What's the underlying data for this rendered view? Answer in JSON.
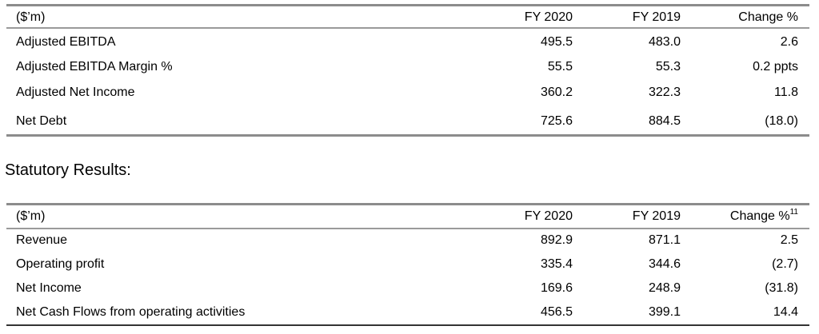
{
  "table1": {
    "header": [
      "($’m)",
      "FY 2020",
      "FY 2019",
      "Change %"
    ],
    "rows": [
      [
        "Adjusted EBITDA",
        "495.5",
        "483.0",
        "2.6"
      ],
      [
        "Adjusted EBITDA Margin %",
        "55.5",
        "55.3",
        "0.2 ppts"
      ],
      [
        "Adjusted Net Income",
        "360.2",
        "322.3",
        "11.8"
      ],
      [
        "Net Debt",
        "725.6",
        "884.5",
        "(18.0)"
      ]
    ]
  },
  "section_title": "Statutory Results:",
  "table2": {
    "header": [
      "($’m)",
      "FY 2020",
      "FY 2019",
      "Change %"
    ],
    "header_note": "11",
    "rows": [
      [
        "Revenue",
        "892.9",
        "871.1",
        "2.5"
      ],
      [
        "Operating profit",
        "335.4",
        "344.6",
        "(2.7)"
      ],
      [
        "Net Income",
        "169.6",
        "248.9",
        "(31.8)"
      ],
      [
        "Net Cash Flows from operating activities",
        "456.5",
        "399.1",
        "14.4"
      ]
    ]
  }
}
